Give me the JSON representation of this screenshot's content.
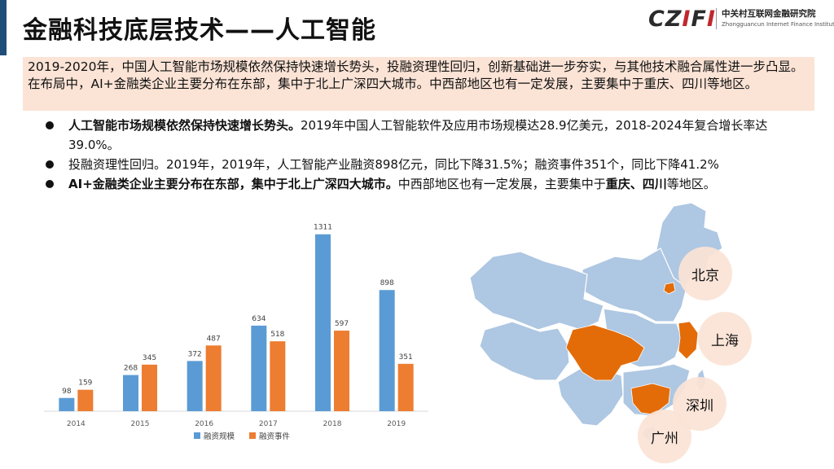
{
  "header": {
    "title": "金融科技底层技术——人工智能",
    "logo_mark": "CZIFI",
    "logo_cn": "中关村互联网金融研究院",
    "logo_en": "Zhongguancun Internet Finance Institute"
  },
  "summary": "2019-2020年，中国人工智能市场规模依然保持快速增长势头，投融资理性回归，创新基础进一步夯实，与其他技术融合属性进一步凸显。在布局中，AI+金融类企业主要分布在东部，集中于北上广深四大城市。中西部地区也有一定发展，主要集中于重庆、四川等地区。",
  "bullets": [
    {
      "bold": "人工智能市场规模依然保持快速增长势头。",
      "text": "2019年中国人工智能软件及应用市场规模达28.9亿美元，2018-2024年复合增长率达39.0%。"
    },
    {
      "text": "投融资理性回归。2019年，2019年，人工智能产业融资898亿元，同比下降31.5%；融资事件351个，同比下降41.2%"
    },
    {
      "bold": "AI+金融类企业主要分布在东部，集中于北上广深四大城市。",
      "text": "中西部地区也有一定发展，主要集中于",
      "bold2": "重庆、四川",
      "text2": "等地区。"
    }
  ],
  "chart_data": {
    "type": "bar",
    "categories": [
      "2014",
      "2015",
      "2016",
      "2017",
      "2018",
      "2019"
    ],
    "series": [
      {
        "name": "融资规模",
        "values": [
          98,
          268,
          372,
          634,
          1311,
          898
        ],
        "color": "#5b9bd5"
      },
      {
        "name": "融资事件",
        "values": [
          159,
          345,
          487,
          518,
          597,
          351
        ],
        "color": "#ed7d31"
      }
    ],
    "ylim": [
      0,
      1400
    ],
    "grid": false,
    "legend": "bottom"
  },
  "map": {
    "cities": [
      "北京",
      "上海",
      "深圳",
      "广州"
    ],
    "colors": {
      "base": "#aec7e2",
      "highlight": "#e36c09",
      "border": "#ffffff"
    }
  }
}
